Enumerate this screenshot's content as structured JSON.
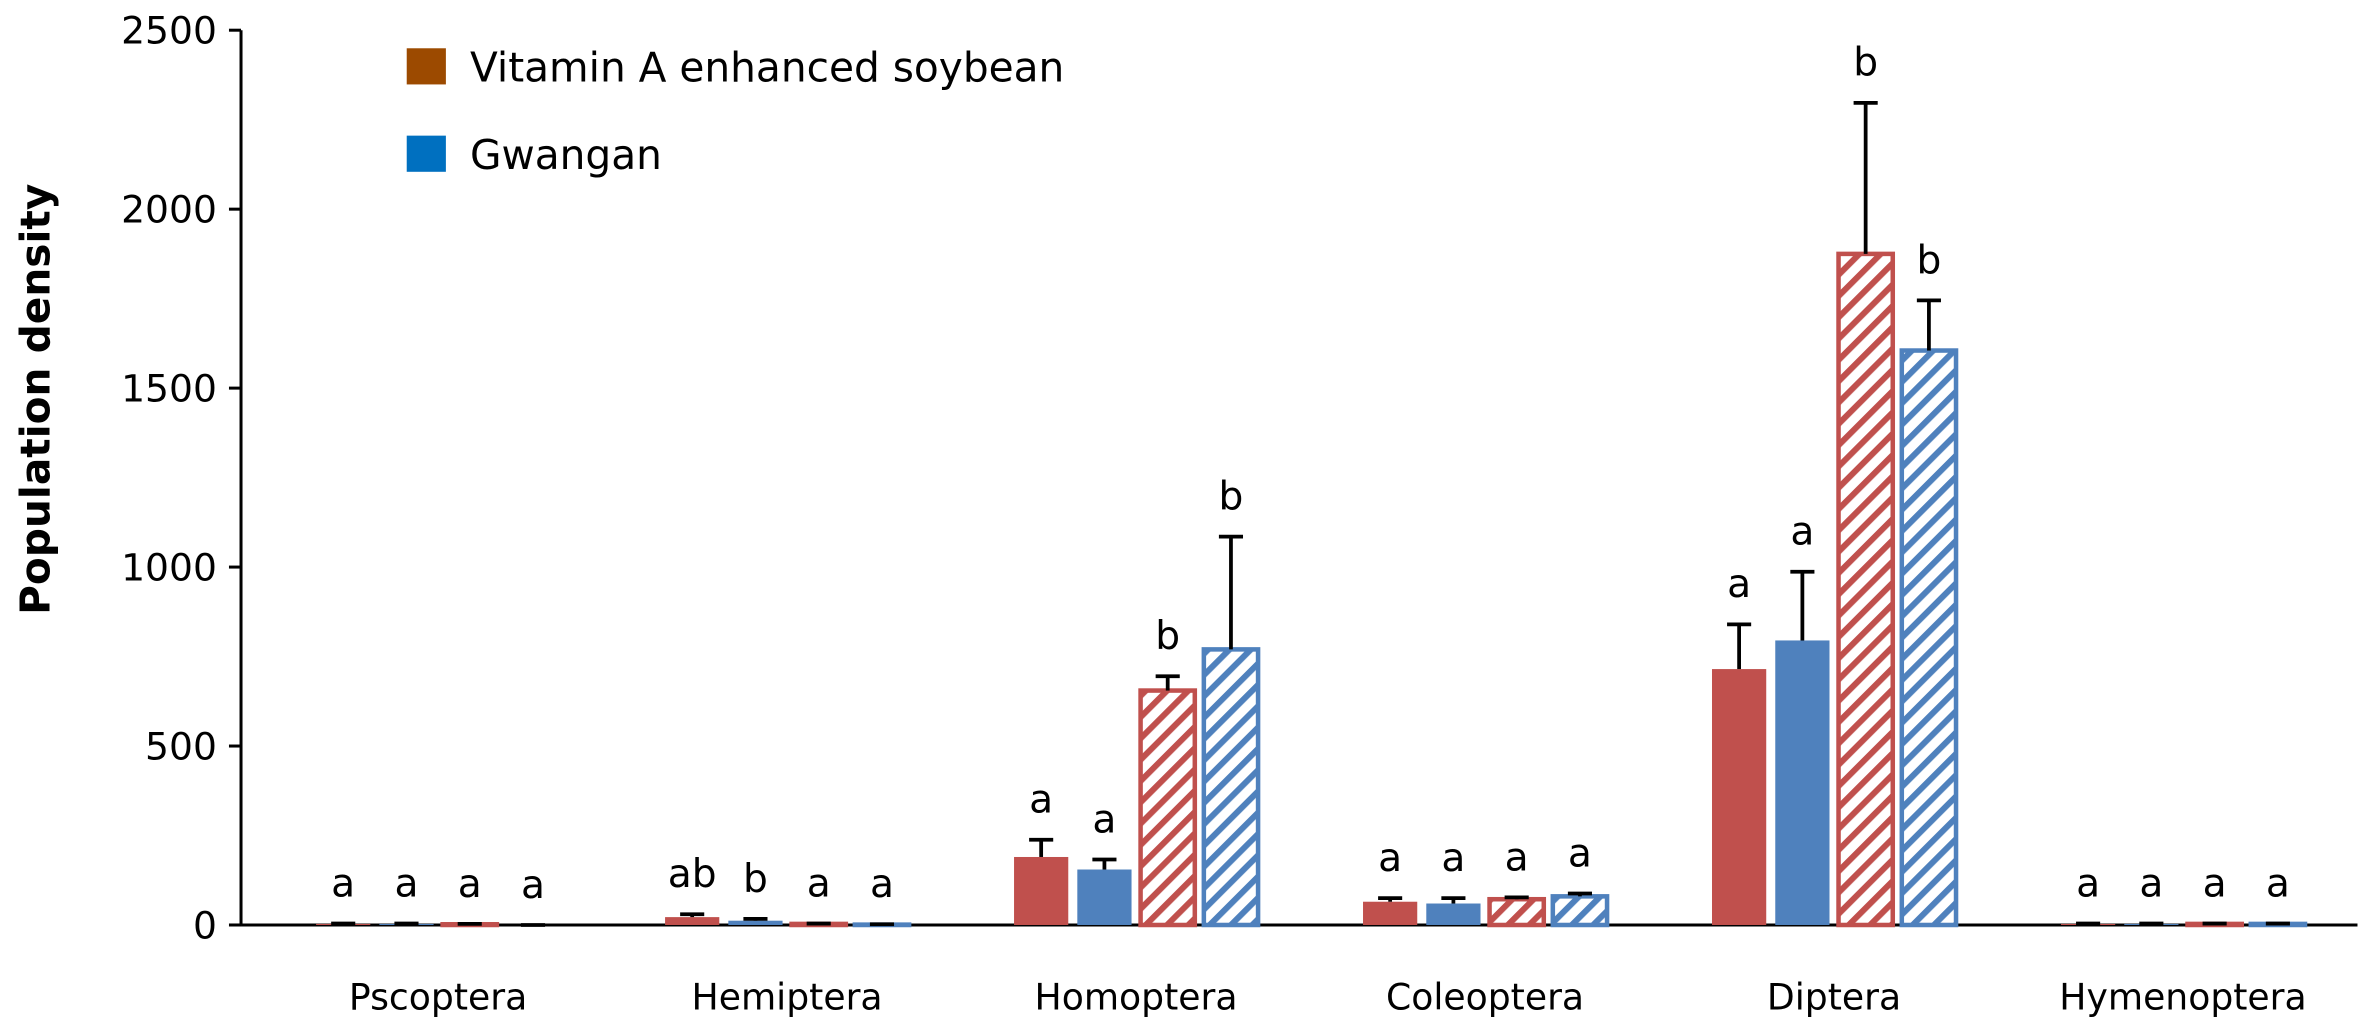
{
  "chart_data": {
    "type": "bar",
    "y_label": "Population density",
    "categories": [
      "Pscoptera",
      "Hemiptera",
      "Homoptera",
      "Coleoptera",
      "Diptera",
      "Hymenoptera"
    ],
    "ylim": [
      0,
      2500
    ],
    "yticks": [
      0,
      500,
      1000,
      1500,
      2000,
      2500
    ],
    "series": [
      {
        "name": "Vitamin A enhanced soybean",
        "color": "#c0504d",
        "legend_color": "#9c4a00",
        "hatched": false,
        "values": [
          3,
          22,
          190,
          65,
          715,
          3
        ],
        "errors": [
          1,
          8,
          48,
          10,
          125,
          1
        ],
        "value_labels": [
          "a",
          "ab",
          "a",
          "a",
          "a",
          "a"
        ]
      },
      {
        "name": "Gwangan",
        "color": "#4f81bd",
        "legend_color": "#0070c0",
        "hatched": false,
        "values": [
          3,
          12,
          155,
          60,
          795,
          3
        ],
        "errors": [
          1,
          5,
          28,
          15,
          192,
          1
        ],
        "value_labels": [
          "a",
          "b",
          "a",
          "a",
          "a",
          "a"
        ]
      },
      {
        "color": "#c0504d",
        "hatched": true,
        "values": [
          2,
          3,
          655,
          72,
          1875,
          3
        ],
        "errors": [
          1,
          1,
          40,
          5,
          422,
          1
        ],
        "value_labels": [
          "a",
          "a",
          "b",
          "a",
          "b",
          "a"
        ]
      },
      {
        "color": "#4f81bd",
        "hatched": true,
        "values": [
          0,
          1,
          770,
          80,
          1605,
          3
        ],
        "errors": [
          0,
          1,
          315,
          8,
          140,
          1
        ],
        "value_labels": [
          "a",
          "a",
          "b",
          "a",
          "b",
          "a"
        ]
      }
    ]
  }
}
